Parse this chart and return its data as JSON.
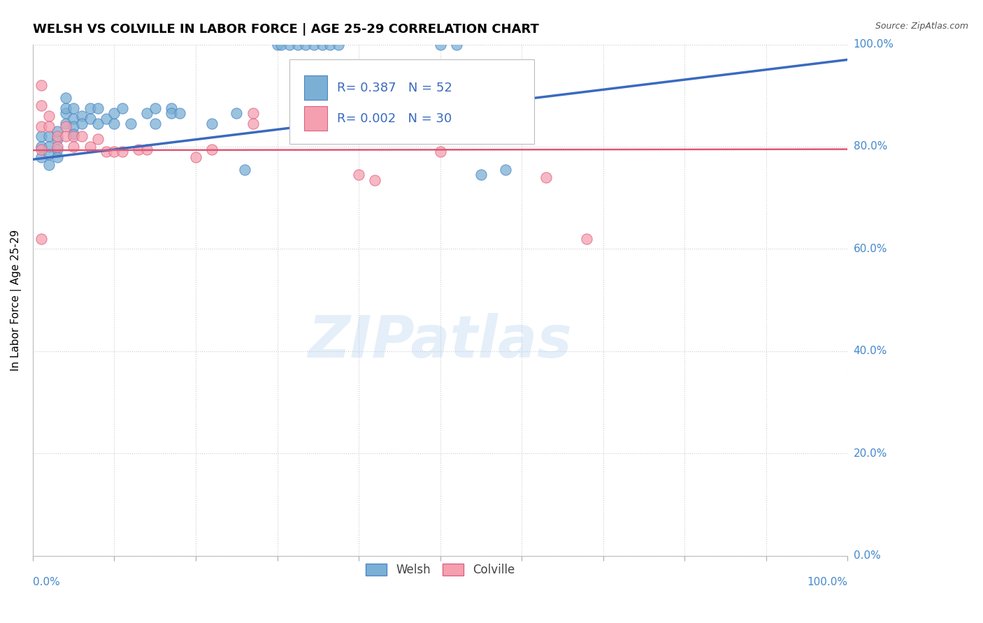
{
  "title": "WELSH VS COLVILLE IN LABOR FORCE | AGE 25-29 CORRELATION CHART",
  "source": "Source: ZipAtlas.com",
  "ylabel": "In Labor Force | Age 25-29",
  "xlim": [
    0.0,
    1.0
  ],
  "ylim": [
    0.0,
    1.0
  ],
  "ytick_labels": [
    "0.0%",
    "20.0%",
    "40.0%",
    "60.0%",
    "80.0%",
    "100.0%"
  ],
  "ytick_values": [
    0.0,
    0.2,
    0.4,
    0.6,
    0.8,
    1.0
  ],
  "xtick_labels": [
    "0.0%",
    "100.0%"
  ],
  "xtick_values": [
    0.0,
    1.0
  ],
  "legend_welsh_R": "R= 0.387",
  "legend_welsh_N": "N = 52",
  "legend_colville_R": "R= 0.002",
  "legend_colville_N": "N = 30",
  "welsh_color": "#7bafd4",
  "colville_color": "#f4a0b0",
  "welsh_edge_color": "#4a86c8",
  "colville_edge_color": "#e06080",
  "trendline_welsh_color": "#3a6abf",
  "trendline_colville_color": "#e05575",
  "welsh_points": [
    [
      0.01,
      0.78
    ],
    [
      0.01,
      0.8
    ],
    [
      0.01,
      0.82
    ],
    [
      0.02,
      0.82
    ],
    [
      0.02,
      0.8
    ],
    [
      0.02,
      0.785
    ],
    [
      0.02,
      0.765
    ],
    [
      0.03,
      0.815
    ],
    [
      0.03,
      0.795
    ],
    [
      0.03,
      0.78
    ],
    [
      0.03,
      0.83
    ],
    [
      0.04,
      0.845
    ],
    [
      0.04,
      0.865
    ],
    [
      0.04,
      0.875
    ],
    [
      0.04,
      0.895
    ],
    [
      0.05,
      0.875
    ],
    [
      0.05,
      0.855
    ],
    [
      0.05,
      0.84
    ],
    [
      0.05,
      0.825
    ],
    [
      0.06,
      0.86
    ],
    [
      0.06,
      0.845
    ],
    [
      0.07,
      0.875
    ],
    [
      0.07,
      0.855
    ],
    [
      0.08,
      0.875
    ],
    [
      0.08,
      0.845
    ],
    [
      0.09,
      0.855
    ],
    [
      0.1,
      0.845
    ],
    [
      0.1,
      0.865
    ],
    [
      0.11,
      0.875
    ],
    [
      0.12,
      0.845
    ],
    [
      0.14,
      0.865
    ],
    [
      0.15,
      0.875
    ],
    [
      0.15,
      0.845
    ],
    [
      0.17,
      0.875
    ],
    [
      0.17,
      0.865
    ],
    [
      0.18,
      0.865
    ],
    [
      0.22,
      0.845
    ],
    [
      0.25,
      0.865
    ],
    [
      0.26,
      0.755
    ],
    [
      0.3,
      1.0
    ],
    [
      0.305,
      1.0
    ],
    [
      0.315,
      1.0
    ],
    [
      0.325,
      1.0
    ],
    [
      0.335,
      1.0
    ],
    [
      0.345,
      1.0
    ],
    [
      0.355,
      1.0
    ],
    [
      0.365,
      1.0
    ],
    [
      0.375,
      1.0
    ],
    [
      0.5,
      1.0
    ],
    [
      0.52,
      1.0
    ],
    [
      0.55,
      0.745
    ],
    [
      0.58,
      0.755
    ]
  ],
  "colville_points": [
    [
      0.01,
      0.92
    ],
    [
      0.01,
      0.88
    ],
    [
      0.01,
      0.84
    ],
    [
      0.02,
      0.86
    ],
    [
      0.02,
      0.84
    ],
    [
      0.03,
      0.82
    ],
    [
      0.03,
      0.8
    ],
    [
      0.04,
      0.84
    ],
    [
      0.04,
      0.82
    ],
    [
      0.05,
      0.82
    ],
    [
      0.05,
      0.8
    ],
    [
      0.06,
      0.82
    ],
    [
      0.07,
      0.8
    ],
    [
      0.08,
      0.815
    ],
    [
      0.09,
      0.79
    ],
    [
      0.1,
      0.79
    ],
    [
      0.11,
      0.79
    ],
    [
      0.13,
      0.795
    ],
    [
      0.14,
      0.795
    ],
    [
      0.2,
      0.78
    ],
    [
      0.22,
      0.795
    ],
    [
      0.01,
      0.795
    ],
    [
      0.27,
      0.865
    ],
    [
      0.27,
      0.845
    ],
    [
      0.4,
      0.745
    ],
    [
      0.42,
      0.735
    ],
    [
      0.5,
      0.79
    ],
    [
      0.63,
      0.74
    ],
    [
      0.68,
      0.62
    ],
    [
      0.01,
      0.62
    ]
  ],
  "welsh_trend_x": [
    0.0,
    1.0
  ],
  "welsh_trend_y": [
    0.775,
    0.97
  ],
  "colville_trend_x": [
    0.0,
    1.0
  ],
  "colville_trend_y": [
    0.793,
    0.795
  ],
  "watermark_text": "ZIPatlas",
  "watermark_color": "#aaccee",
  "watermark_alpha": 0.3
}
